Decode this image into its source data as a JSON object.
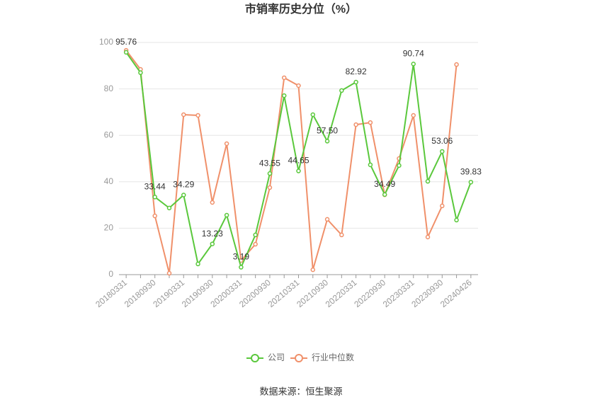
{
  "chart_data": {
    "type": "line",
    "title": "市销率历史分位（%）",
    "categories": [
      "20180331",
      null,
      "20180930",
      null,
      "20190331",
      null,
      "20190930",
      null,
      "20200331",
      null,
      "20200930",
      null,
      "20210331",
      null,
      "20210930",
      null,
      "20220331",
      null,
      "20220930",
      null,
      "20230331",
      null,
      "20230930",
      null,
      "20240426"
    ],
    "series": [
      {
        "name": "公司",
        "color": "#5ac83c",
        "values": [
          95.76,
          87,
          33.44,
          28.7,
          34.29,
          4.6,
          13.23,
          25.6,
          3.19,
          17.1,
          43.55,
          77.1,
          44.65,
          68.9,
          57.5,
          79.3,
          82.92,
          47.3,
          34.49,
          47,
          90.74,
          40.2,
          53.06,
          23.5,
          39.83
        ],
        "value_labels": [
          "95.76",
          null,
          "33.44",
          null,
          "34.29",
          null,
          "13.23",
          null,
          "3.19",
          null,
          "43.55",
          null,
          "44.65",
          null,
          "57.50",
          null,
          "82.92",
          null,
          "34.49",
          null,
          "90.74",
          null,
          "53.06",
          null,
          "39.83"
        ]
      },
      {
        "name": "行业中位数",
        "color": "#f0906a",
        "values": [
          96.6,
          88.4,
          25.3,
          0.6,
          68.9,
          68.6,
          31.1,
          56.4,
          6.1,
          13.1,
          37.5,
          84.8,
          81.4,
          2.1,
          23.8,
          17.1,
          64.6,
          65.5,
          34.4,
          50,
          68.6,
          16.2,
          29.6,
          90.5,
          null
        ]
      }
    ],
    "ylim": [
      0,
      100
    ],
    "yticks": [
      0,
      20,
      40,
      60,
      80,
      100
    ],
    "grid": true,
    "source": "数据来源：恒生聚源"
  }
}
